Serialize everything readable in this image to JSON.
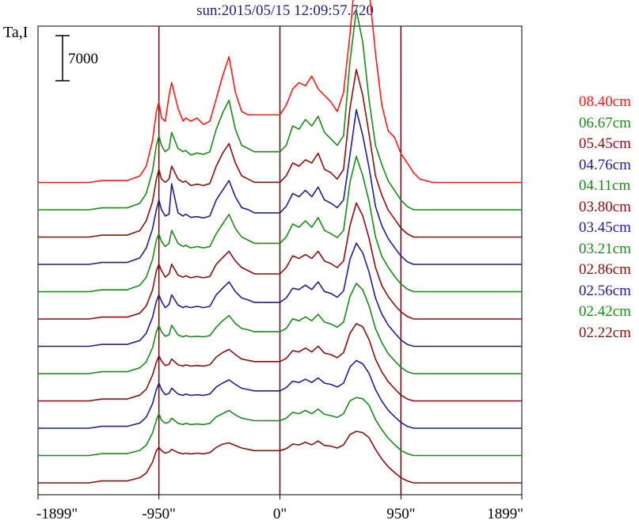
{
  "chart_data": {
    "type": "line",
    "title": "sun:2015/05/15 12:09:57.720",
    "ylabel": "Ta,I",
    "xlabel": "",
    "xlim": [
      -1899,
      1899
    ],
    "x_ticks": [
      -1899,
      -950,
      0,
      950,
      1899
    ],
    "x_tick_labels": [
      "-1899\"",
      "-950\"",
      "0\"",
      "950\"",
      "1899\""
    ],
    "vertical_reference_lines": [
      -950,
      0,
      950
    ],
    "scale_bar": {
      "value": 7000,
      "label": "7000"
    },
    "legend_position": "right",
    "x": [
      -1899,
      -1800,
      -1700,
      -1600,
      -1500,
      -1400,
      -1300,
      -1200,
      -1100,
      -1050,
      -1000,
      -970,
      -950,
      -930,
      -900,
      -870,
      -850,
      -800,
      -760,
      -740,
      -700,
      -650,
      -600,
      -550,
      -500,
      -450,
      -400,
      -350,
      -300,
      -250,
      -200,
      -150,
      -100,
      -50,
      0,
      50,
      100,
      150,
      200,
      250,
      300,
      350,
      400,
      450,
      500,
      550,
      600,
      650,
      700,
      750,
      800,
      850,
      900,
      950,
      1000,
      1050,
      1100,
      1200,
      1300,
      1400,
      1500,
      1600,
      1700,
      1800,
      1899
    ],
    "series": [
      {
        "name": "08.40cm",
        "color": "#ff1a1a",
        "values": [
          0,
          0,
          0,
          0,
          0,
          300,
          300,
          300,
          1000,
          2500,
          6500,
          11000,
          12500,
          10000,
          9500,
          13500,
          15500,
          11500,
          9500,
          10000,
          9500,
          10000,
          9000,
          9500,
          13000,
          16500,
          19500,
          14000,
          11000,
          10500,
          10500,
          10500,
          10500,
          10500,
          10500,
          12000,
          14500,
          15500,
          15000,
          16500,
          14500,
          13500,
          12500,
          11000,
          14000,
          23000,
          34000,
          35000,
          30000,
          20000,
          12000,
          8000,
          7000,
          4500,
          3000,
          1500,
          500,
          0,
          0,
          0,
          0,
          0,
          0,
          0,
          0
        ]
      },
      {
        "name": "06.67cm",
        "color": "#1a8a1a",
        "values": [
          0,
          0,
          0,
          0,
          0,
          300,
          300,
          300,
          1000,
          2500,
          6000,
          10000,
          11500,
          10000,
          9000,
          9500,
          12000,
          9500,
          9000,
          9200,
          8500,
          8800,
          8600,
          9000,
          12500,
          15000,
          17000,
          12500,
          10000,
          9500,
          9000,
          9000,
          9000,
          9000,
          9000,
          10000,
          13000,
          12500,
          14000,
          13000,
          14500,
          12000,
          11000,
          10000,
          11500,
          23000,
          31000,
          26000,
          17000,
          10000,
          7000,
          4500,
          3000,
          1500,
          500,
          0,
          0,
          0,
          0,
          0,
          0,
          0,
          0,
          0,
          0
        ]
      },
      {
        "name": "05.45cm",
        "color": "#8b0f0f",
        "values": [
          0,
          0,
          0,
          0,
          0,
          300,
          300,
          300,
          1000,
          2500,
          5500,
          9000,
          10500,
          9000,
          8500,
          9000,
          11000,
          9000,
          8500,
          8700,
          8000,
          8200,
          8000,
          8300,
          11000,
          13000,
          14500,
          11500,
          9500,
          9000,
          8500,
          8500,
          8500,
          8500,
          8500,
          9500,
          11500,
          11000,
          12000,
          11500,
          13000,
          10500,
          10000,
          9000,
          10500,
          20000,
          26000,
          22000,
          16000,
          9500,
          6500,
          4200,
          2800,
          1400,
          500,
          0,
          0,
          0,
          0,
          0,
          0,
          0,
          0,
          0,
          0
        ]
      },
      {
        "name": "04.76cm",
        "color": "#1f1f8f",
        "values": [
          0,
          0,
          0,
          0,
          0,
          300,
          300,
          300,
          1000,
          2500,
          5500,
          8500,
          10000,
          8500,
          7500,
          7800,
          12500,
          8000,
          7500,
          7800,
          7300,
          7400,
          7200,
          7500,
          10000,
          11500,
          13000,
          10500,
          8800,
          8500,
          8000,
          8000,
          8000,
          8000,
          8000,
          9000,
          11000,
          10500,
          11500,
          10500,
          12000,
          10000,
          9500,
          8800,
          10000,
          17000,
          24000,
          20000,
          15000,
          9000,
          6000,
          4000,
          2600,
          1300,
          400,
          0,
          0,
          0,
          0,
          0,
          0,
          0,
          0,
          0,
          0
        ]
      },
      {
        "name": "04.11cm",
        "color": "#1a8a1a",
        "values": [
          0,
          0,
          0,
          0,
          0,
          300,
          300,
          300,
          1000,
          2200,
          5000,
          8000,
          9000,
          7800,
          7000,
          7500,
          9500,
          7500,
          7000,
          7200,
          6800,
          7000,
          6800,
          7000,
          9000,
          10500,
          12000,
          9800,
          8500,
          8000,
          7500,
          7500,
          7500,
          7500,
          7500,
          8500,
          10500,
          10000,
          11000,
          10000,
          11500,
          9500,
          9000,
          8400,
          9500,
          17000,
          21000,
          18000,
          14000,
          8500,
          5500,
          3800,
          2400,
          1200,
          400,
          0,
          0,
          0,
          0,
          0,
          0,
          0,
          0,
          0,
          0
        ]
      },
      {
        "name": "03.80cm",
        "color": "#8b0f0f",
        "values": [
          0,
          0,
          0,
          0,
          0,
          300,
          300,
          300,
          900,
          2000,
          4500,
          7500,
          8500,
          7500,
          6500,
          7000,
          8500,
          6800,
          6500,
          6700,
          6400,
          6600,
          6400,
          6600,
          8500,
          9500,
          10500,
          9000,
          8000,
          7500,
          7000,
          7000,
          7000,
          7000,
          7000,
          8000,
          9800,
          9400,
          10000,
          9400,
          10500,
          9000,
          8600,
          8000,
          9000,
          14500,
          18000,
          16000,
          12500,
          8000,
          5200,
          3500,
          2200,
          1100,
          400,
          0,
          0,
          0,
          0,
          0,
          0,
          0,
          0,
          0,
          0
        ]
      },
      {
        "name": "03.45cm",
        "color": "#1f1f8f",
        "values": [
          0,
          0,
          0,
          0,
          0,
          300,
          300,
          300,
          900,
          2000,
          4500,
          7000,
          8000,
          7000,
          6000,
          6500,
          8000,
          6400,
          6000,
          6200,
          6000,
          6200,
          6000,
          6200,
          8000,
          9000,
          10000,
          8500,
          7500,
          7200,
          6800,
          6800,
          6800,
          6800,
          6800,
          7500,
          9000,
          8800,
          9500,
          8800,
          10000,
          8500,
          8200,
          7600,
          8600,
          13500,
          16000,
          14500,
          11500,
          7500,
          5000,
          3300,
          2100,
          1000,
          300,
          0,
          0,
          0,
          0,
          0,
          0,
          0,
          0,
          0,
          0
        ]
      },
      {
        "name": "03.21cm",
        "color": "#1a8a1a",
        "values": [
          0,
          0,
          0,
          0,
          0,
          300,
          300,
          300,
          900,
          1800,
          4000,
          6500,
          7500,
          6500,
          5800,
          6000,
          7500,
          6000,
          5700,
          5900,
          5700,
          5800,
          5700,
          5900,
          7200,
          8200,
          9000,
          7800,
          7000,
          6800,
          6500,
          6500,
          6500,
          6500,
          6500,
          7000,
          8500,
          8200,
          8800,
          8200,
          9200,
          8000,
          7700,
          7200,
          8000,
          12000,
          14000,
          13000,
          10500,
          7000,
          4800,
          3100,
          2000,
          1000,
          300,
          0,
          0,
          0,
          0,
          0,
          0,
          0,
          0,
          0,
          0
        ]
      },
      {
        "name": "02.86cm",
        "color": "#8b0f0f",
        "values": [
          0,
          0,
          0,
          0,
          0,
          300,
          300,
          300,
          900,
          1800,
          4000,
          6000,
          7000,
          6200,
          5500,
          5700,
          6500,
          5600,
          5400,
          5600,
          5400,
          5500,
          5400,
          5600,
          6800,
          7500,
          8000,
          7200,
          6500,
          6300,
          6100,
          6100,
          6100,
          6100,
          6100,
          6600,
          7800,
          7600,
          8200,
          7600,
          8500,
          7400,
          7200,
          6700,
          7500,
          10500,
          12000,
          11500,
          9500,
          6500,
          4500,
          3000,
          1900,
          900,
          300,
          0,
          0,
          0,
          0,
          0,
          0,
          0,
          0,
          0,
          0
        ]
      },
      {
        "name": "02.56cm",
        "color": "#1f1f8f",
        "values": [
          0,
          0,
          0,
          0,
          0,
          300,
          300,
          300,
          800,
          1700,
          3800,
          6000,
          7000,
          6000,
          5200,
          5400,
          6200,
          5300,
          5100,
          5300,
          5100,
          5200,
          5100,
          5300,
          6400,
          7000,
          7500,
          6800,
          6200,
          6000,
          5800,
          5800,
          5800,
          5800,
          5800,
          6300,
          7300,
          7100,
          7600,
          7100,
          7800,
          7000,
          6800,
          6400,
          7000,
          9500,
          10500,
          10000,
          8500,
          6000,
          4200,
          2800,
          1800,
          900,
          300,
          0,
          0,
          0,
          0,
          0,
          0,
          0,
          0,
          0,
          0
        ]
      },
      {
        "name": "02.42cm",
        "color": "#1a8a1a",
        "values": [
          0,
          0,
          0,
          0,
          0,
          300,
          300,
          300,
          800,
          1600,
          3500,
          5500,
          6500,
          5500,
          5000,
          5200,
          5800,
          5000,
          4800,
          5000,
          4800,
          4900,
          4800,
          5000,
          6000,
          6500,
          7000,
          6300,
          5800,
          5600,
          5400,
          5400,
          5400,
          5400,
          5400,
          5800,
          6700,
          6500,
          7000,
          6500,
          7200,
          6400,
          6200,
          5900,
          6500,
          8500,
          9000,
          8800,
          7800,
          5600,
          4000,
          2700,
          1700,
          800,
          300,
          0,
          0,
          0,
          0,
          0,
          0,
          0,
          0,
          0,
          0
        ]
      },
      {
        "name": "02.22cm",
        "color": "#8b0f0f",
        "values": [
          0,
          0,
          0,
          0,
          0,
          300,
          300,
          300,
          800,
          1500,
          3200,
          5000,
          5500,
          5000,
          4600,
          4800,
          5200,
          4700,
          4500,
          4600,
          4500,
          4600,
          4500,
          4700,
          5500,
          6000,
          6200,
          5800,
          5400,
          5200,
          5000,
          5000,
          5000,
          5000,
          5000,
          5300,
          6000,
          5900,
          6300,
          5900,
          6500,
          5800,
          5700,
          5400,
          5900,
          7500,
          8000,
          7800,
          7000,
          5200,
          3700,
          2500,
          1600,
          800,
          300,
          0,
          0,
          0,
          0,
          0,
          0,
          0,
          0,
          0,
          0
        ]
      }
    ]
  }
}
